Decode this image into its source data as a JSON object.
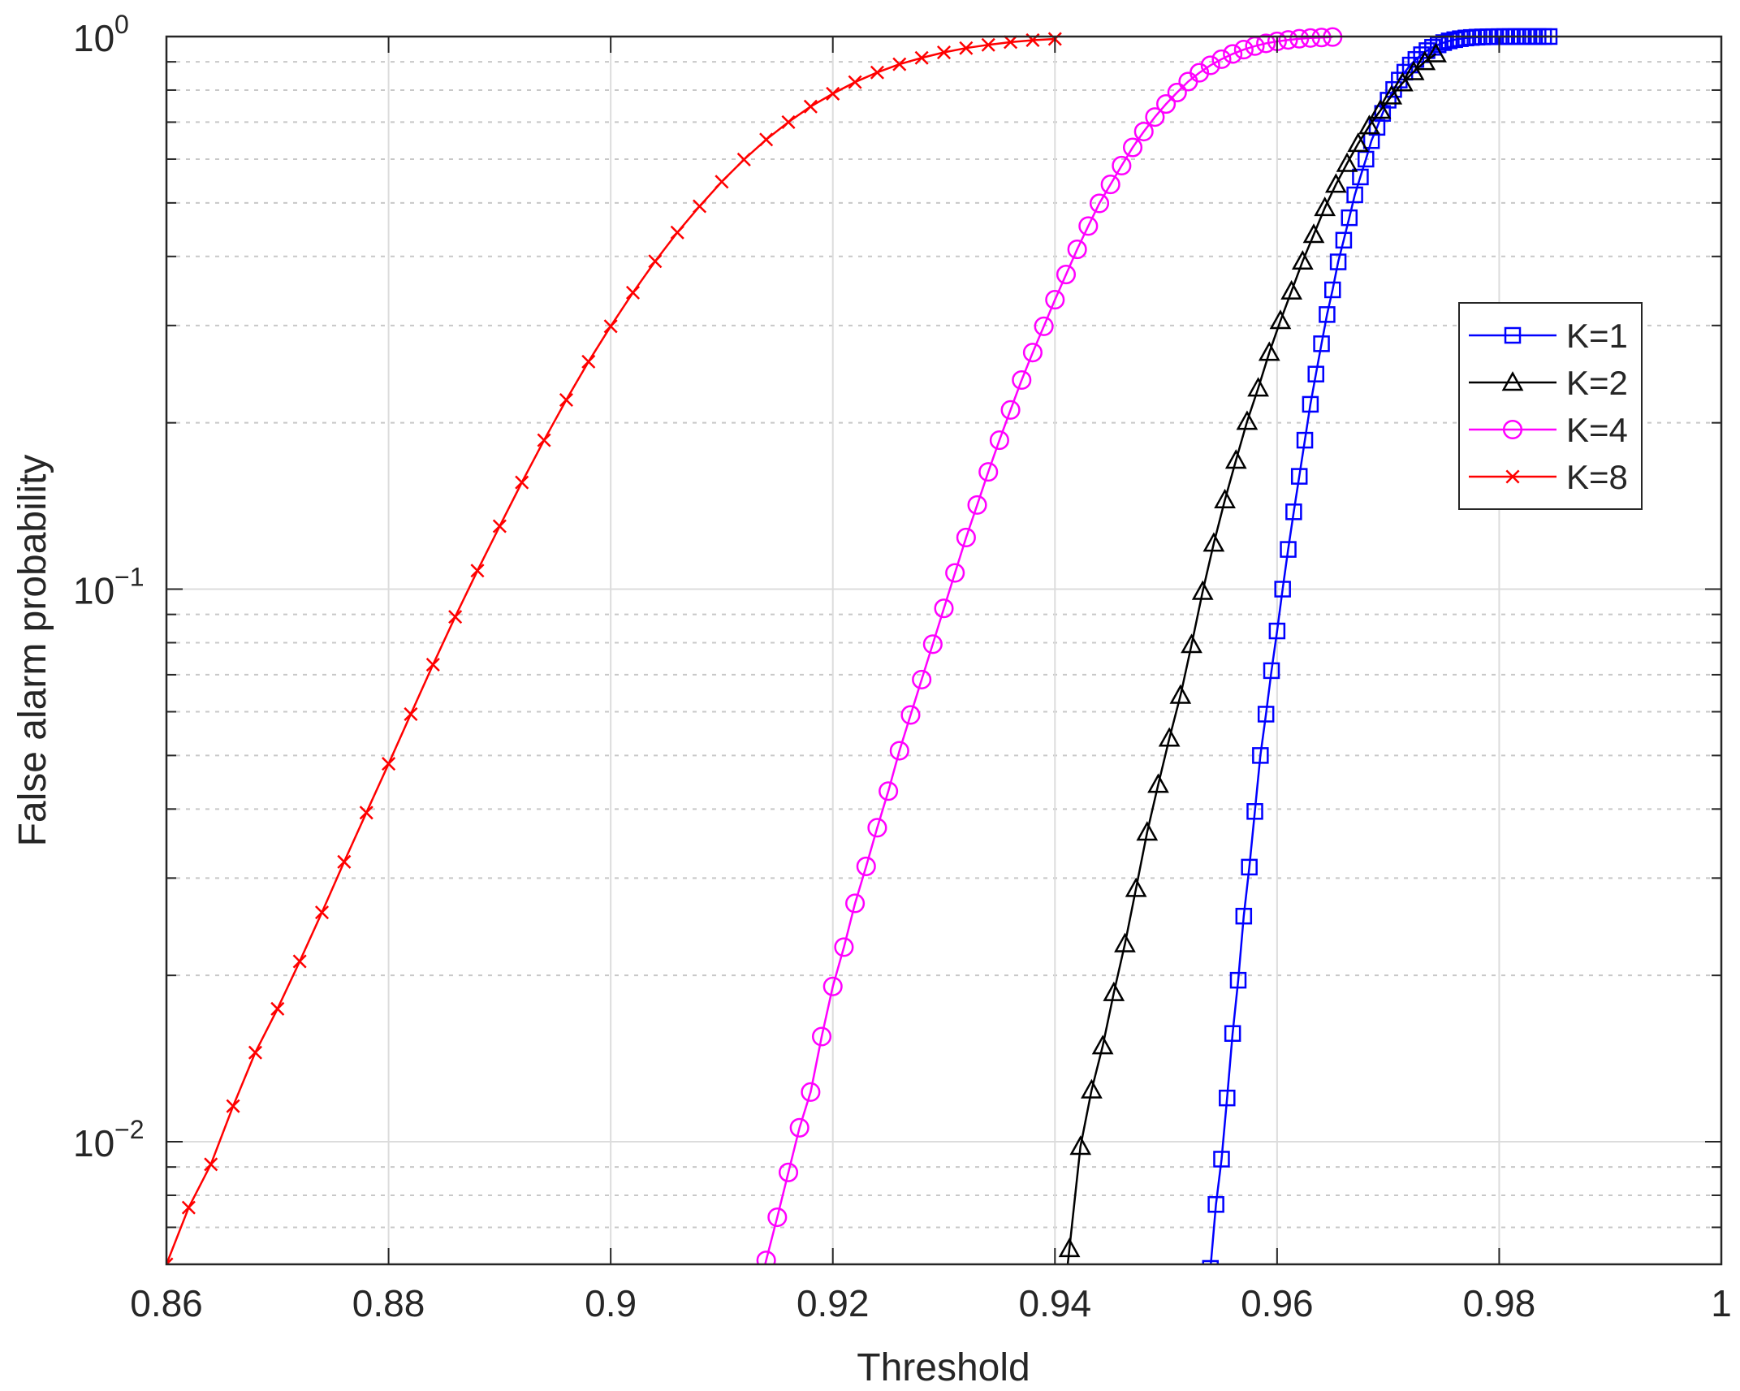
{
  "chart_data": {
    "type": "line",
    "title": "",
    "xlabel": "Threshold",
    "ylabel": "False alarm probability",
    "xlim": [
      0.86,
      1.0
    ],
    "ylim": [
      0.006,
      1.0
    ],
    "yscale": "log",
    "grid": true,
    "minor_grid": true,
    "legend_position": "right",
    "x_ticks": [
      0.86,
      0.88,
      0.9,
      0.92,
      0.94,
      0.96,
      0.98,
      1.0
    ],
    "x_tick_labels": [
      "0.86",
      "0.88",
      "0.9",
      "0.92",
      "0.94",
      "0.96",
      "0.98",
      "1"
    ],
    "y_ticks": [
      0.01,
      0.1,
      1
    ],
    "y_tick_labels": [
      {
        "base": "10",
        "exp": "−2"
      },
      {
        "base": "10",
        "exp": "−1"
      },
      {
        "base": "10",
        "exp": "0"
      }
    ],
    "series": [
      {
        "name": "K=1",
        "color": "#0000ff",
        "marker": "square",
        "x": [
          0.954,
          0.9545,
          0.955,
          0.9555,
          0.956,
          0.9565,
          0.957,
          0.9575,
          0.958,
          0.9585,
          0.959,
          0.9595,
          0.96,
          0.9605,
          0.961,
          0.9615,
          0.962,
          0.9625,
          0.963,
          0.9635,
          0.964,
          0.9645,
          0.965,
          0.9655,
          0.966,
          0.9665,
          0.967,
          0.9675,
          0.968,
          0.9685,
          0.969,
          0.9695,
          0.97,
          0.9705,
          0.971,
          0.9715,
          0.972,
          0.9725,
          0.973,
          0.9735,
          0.974,
          0.9745,
          0.975,
          0.9755,
          0.976,
          0.9765,
          0.977,
          0.9775,
          0.978,
          0.9785,
          0.979,
          0.9795,
          0.98,
          0.9805,
          0.981,
          0.9815,
          0.982,
          0.9825,
          0.983,
          0.9835,
          0.984,
          0.9845
        ],
        "y": [
          0.0059,
          0.0077,
          0.0093,
          0.012,
          0.0157,
          0.0196,
          0.0256,
          0.0314,
          0.0396,
          0.05,
          0.0594,
          0.0712,
          0.084,
          0.1,
          0.118,
          0.138,
          0.16,
          0.186,
          0.216,
          0.245,
          0.278,
          0.314,
          0.348,
          0.391,
          0.428,
          0.47,
          0.517,
          0.557,
          0.6,
          0.648,
          0.685,
          0.726,
          0.767,
          0.802,
          0.834,
          0.862,
          0.888,
          0.909,
          0.927,
          0.943,
          0.956,
          0.966,
          0.975,
          0.982,
          0.987,
          0.991,
          0.994,
          0.996,
          0.9975,
          0.9985,
          0.999,
          0.9994,
          0.9996,
          0.9998,
          0.9999,
          1.0,
          1.0,
          1.0,
          1.0,
          1.0,
          1.0,
          1.0
        ]
      },
      {
        "name": "K=2",
        "color": "#000000",
        "marker": "triangle",
        "x": [
          0.9413,
          0.9423,
          0.9433,
          0.9443,
          0.9453,
          0.9463,
          0.9473,
          0.9483,
          0.9493,
          0.9503,
          0.9513,
          0.9523,
          0.9533,
          0.9543,
          0.9553,
          0.9563,
          0.9573,
          0.9583,
          0.9593,
          0.9603,
          0.9613,
          0.9623,
          0.9633,
          0.9643,
          0.9653,
          0.9663,
          0.9673,
          0.9683,
          0.9693,
          0.9703,
          0.9713,
          0.9723,
          0.9733,
          0.9743
        ],
        "y": [
          0.0064,
          0.0098,
          0.0124,
          0.0149,
          0.0186,
          0.0228,
          0.0287,
          0.0363,
          0.0443,
          0.0537,
          0.0642,
          0.0793,
          0.099,
          0.121,
          0.145,
          0.171,
          0.201,
          0.231,
          0.268,
          0.306,
          0.346,
          0.392,
          0.438,
          0.49,
          0.54,
          0.589,
          0.64,
          0.689,
          0.735,
          0.78,
          0.824,
          0.863,
          0.9,
          0.93
        ]
      },
      {
        "name": "K=4",
        "color": "#ff00ff",
        "marker": "circle",
        "x": [
          0.914,
          0.915,
          0.916,
          0.917,
          0.918,
          0.919,
          0.92,
          0.921,
          0.922,
          0.923,
          0.924,
          0.925,
          0.926,
          0.927,
          0.928,
          0.929,
          0.93,
          0.931,
          0.932,
          0.933,
          0.934,
          0.935,
          0.936,
          0.937,
          0.938,
          0.939,
          0.94,
          0.941,
          0.942,
          0.943,
          0.944,
          0.945,
          0.946,
          0.947,
          0.948,
          0.949,
          0.95,
          0.951,
          0.952,
          0.953,
          0.954,
          0.955,
          0.956,
          0.957,
          0.958,
          0.959,
          0.96,
          0.961,
          0.962,
          0.963,
          0.964,
          0.965
        ],
        "y": [
          0.0061,
          0.0073,
          0.0088,
          0.0106,
          0.0123,
          0.0155,
          0.0191,
          0.0225,
          0.027,
          0.0315,
          0.037,
          0.0431,
          0.051,
          0.0592,
          0.0686,
          0.0795,
          0.0923,
          0.107,
          0.124,
          0.142,
          0.163,
          0.186,
          0.211,
          0.239,
          0.268,
          0.299,
          0.334,
          0.371,
          0.412,
          0.454,
          0.499,
          0.54,
          0.584,
          0.63,
          0.673,
          0.715,
          0.755,
          0.792,
          0.829,
          0.86,
          0.887,
          0.91,
          0.93,
          0.947,
          0.961,
          0.972,
          0.98,
          0.986,
          0.991,
          0.994,
          0.996,
          0.998
        ]
      },
      {
        "name": "K=8",
        "color": "#ff0000",
        "marker": "x",
        "x": [
          0.86,
          0.862,
          0.864,
          0.866,
          0.868,
          0.87,
          0.872,
          0.874,
          0.876,
          0.878,
          0.88,
          0.882,
          0.884,
          0.886,
          0.888,
          0.89,
          0.892,
          0.894,
          0.896,
          0.898,
          0.9,
          0.902,
          0.904,
          0.906,
          0.908,
          0.91,
          0.912,
          0.914,
          0.916,
          0.918,
          0.92,
          0.922,
          0.924,
          0.926,
          0.928,
          0.93,
          0.932,
          0.934,
          0.936,
          0.938,
          0.94
        ],
        "y": [
          0.006,
          0.0076,
          0.0091,
          0.0116,
          0.0145,
          0.0174,
          0.0212,
          0.026,
          0.0321,
          0.0394,
          0.0483,
          0.0594,
          0.073,
          0.0891,
          0.108,
          0.13,
          0.156,
          0.186,
          0.22,
          0.258,
          0.299,
          0.344,
          0.392,
          0.442,
          0.493,
          0.546,
          0.599,
          0.651,
          0.7,
          0.747,
          0.788,
          0.827,
          0.861,
          0.891,
          0.915,
          0.936,
          0.953,
          0.966,
          0.977,
          0.985,
          0.99
        ]
      }
    ]
  }
}
